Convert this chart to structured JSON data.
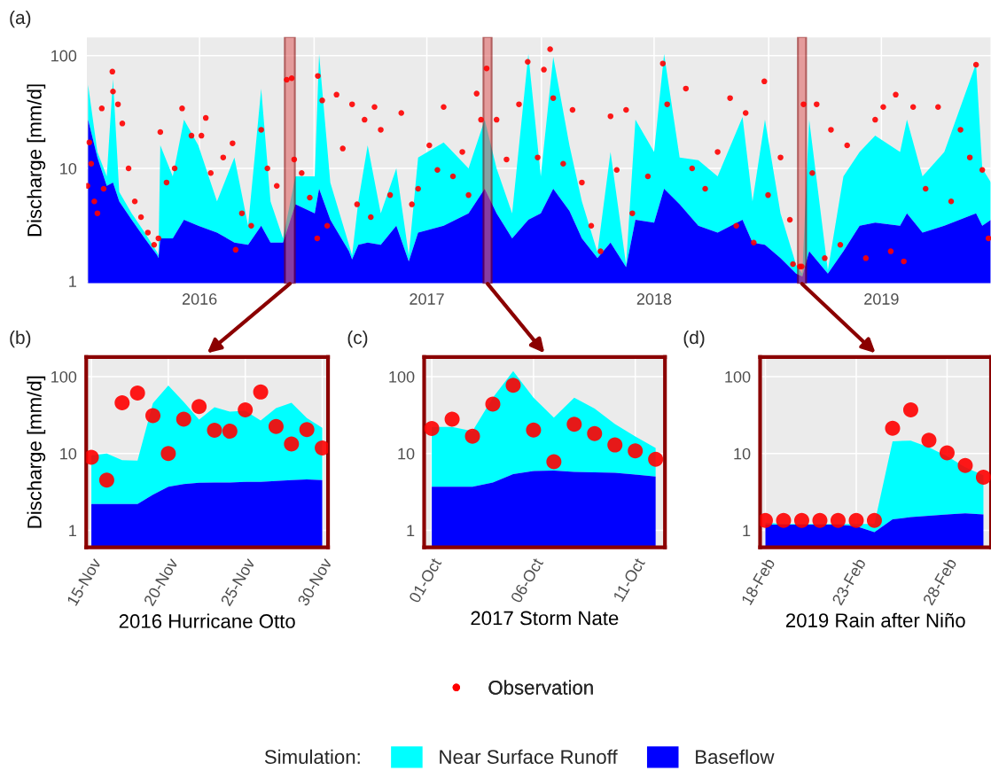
{
  "chart_data": [
    {
      "type": "area",
      "title": "(a)",
      "ylabel": "Discharge [mm/d]",
      "log": "y",
      "grid": true,
      "legend": "bottom",
      "legend_title": "Simulation:",
      "ylim": [
        0.95,
        146
      ],
      "yticks": [
        1,
        10,
        100
      ],
      "xlim": [
        "2016-01-01",
        "2019-12-24"
      ],
      "xticks": [
        {
          "value": "2016-01-01",
          "label": null
        },
        {
          "value": "2016-07-01",
          "label": "2016"
        },
        {
          "value": "2017-01-01",
          "label": null
        },
        {
          "value": "2017-07-01",
          "label": "2017"
        },
        {
          "value": "2018-01-01",
          "label": null
        },
        {
          "value": "2018-07-01",
          "label": "2018"
        },
        {
          "value": "2019-01-01",
          "label": null
        },
        {
          "value": "2019-07-01",
          "label": "2019"
        }
      ],
      "bands": [
        {
          "axis": "x",
          "from": "2016-11-15",
          "to": "2016-12-01",
          "color": "#e06666"
        },
        {
          "axis": "x",
          "from": "2017-09-30",
          "to": "2017-10-13",
          "color": "#e06666"
        },
        {
          "axis": "x",
          "from": "2019-02-17",
          "to": "2019-03-02",
          "color": "#e06666"
        }
      ],
      "x": [
        "2016-01-04",
        "2016-01-19",
        "2016-02-03",
        "2016-02-13",
        "2016-02-23",
        "2016-03-14",
        "2016-04-04",
        "2016-04-24",
        "2016-04-26",
        "2016-04-29",
        "2016-05-19",
        "2016-06-06",
        "2016-06-29",
        "2016-07-29",
        "2016-08-26",
        "2016-09-17",
        "2016-10-08",
        "2016-10-23",
        "2016-11-12",
        "2016-12-02",
        "2017-01-02",
        "2017-01-09",
        "2017-01-27",
        "2017-02-26",
        "2017-03-03",
        "2017-03-13",
        "2017-03-28",
        "2017-04-18",
        "2017-05-13",
        "2017-06-02",
        "2017-06-17",
        "2017-07-28",
        "2017-09-06",
        "2017-10-02",
        "2017-10-21",
        "2017-11-15",
        "2017-12-11",
        "2017-12-31",
        "2018-01-20",
        "2018-02-15",
        "2018-03-07",
        "2018-04-01",
        "2018-04-22",
        "2018-05-17",
        "2018-06-01",
        "2018-07-01",
        "2018-07-17",
        "2018-08-11",
        "2018-09-10",
        "2018-10-11",
        "2018-11-20",
        "2018-12-06",
        "2018-12-26",
        "2019-01-20",
        "2019-02-14",
        "2019-02-24",
        "2019-03-07",
        "2019-04-06",
        "2019-05-01",
        "2019-05-27",
        "2019-06-21",
        "2019-07-31",
        "2019-08-11",
        "2019-09-05",
        "2019-10-10",
        "2019-11-30",
        "2019-12-10",
        "2019-12-24"
      ],
      "series": [
        {
          "name": "Near Surface Runoff",
          "color": "#00ffff",
          "values": [
            55,
            14,
            8.5,
            62,
            6.2,
            4,
            2.7,
            1.8,
            1.7,
            16,
            8.5,
            27,
            16,
            5.1,
            12.5,
            3.1,
            51,
            5.1,
            2.4,
            8.5,
            8.5,
            103,
            7.5,
            2.1,
            1.7,
            5.1,
            16,
            4,
            10,
            1.7,
            12.5,
            17,
            10,
            27,
            10,
            4,
            103,
            8.5,
            97,
            16,
            5.1,
            1.8,
            14,
            1.4,
            27,
            14,
            103,
            12.5,
            11.8,
            8.5,
            28.6,
            5.1,
            27,
            4,
            1.4,
            1.17,
            27,
            1.25,
            8.5,
            14,
            19.5,
            14,
            27,
            8.5,
            14,
            85,
            10,
            7.5
          ]
        },
        {
          "name": "Baseflow",
          "color": "#0000ff",
          "values": [
            27,
            12.5,
            7,
            7.5,
            5.1,
            3.5,
            2.4,
            1.7,
            1.6,
            2.4,
            2.4,
            3.5,
            3.1,
            2.7,
            2.2,
            2.1,
            3.1,
            2.2,
            2.2,
            4.8,
            4.0,
            6.6,
            3.5,
            1.84,
            1.56,
            2.1,
            2.2,
            2.1,
            3.1,
            1.5,
            2.7,
            3.1,
            4.0,
            6.6,
            4.0,
            2.4,
            3.5,
            4,
            6.6,
            4.2,
            2.4,
            1.6,
            2.2,
            1.33,
            3.5,
            3.3,
            6.6,
            4.8,
            3.1,
            2.7,
            3.5,
            2.2,
            2.1,
            1.6,
            1.17,
            1.1,
            1.84,
            1.17,
            1.84,
            3.1,
            3.3,
            3.1,
            4.0,
            2.7,
            3.1,
            4.0,
            3.1,
            3.5
          ]
        },
        {
          "name": "Observation",
          "type": "scatter",
          "marker": "circle",
          "color": "#ff0000",
          "x": [
            "2016-01-03",
            "2016-01-06",
            "2016-01-09",
            "2016-01-14",
            "2016-01-19",
            "2016-01-26",
            "2016-01-29",
            "2016-02-12",
            "2016-02-13",
            "2016-02-21",
            "2016-02-28",
            "2016-03-09",
            "2016-03-19",
            "2016-03-29",
            "2016-04-09",
            "2016-04-19",
            "2016-04-26",
            "2016-04-29",
            "2016-05-09",
            "2016-05-22",
            "2016-06-03",
            "2016-06-18",
            "2016-07-04",
            "2016-07-11",
            "2016-07-19",
            "2016-08-08",
            "2016-08-23",
            "2016-08-28",
            "2016-09-07",
            "2016-09-22",
            "2016-10-08",
            "2016-10-18",
            "2016-11-02",
            "2016-11-18",
            "2016-11-26",
            "2016-11-30",
            "2016-12-12",
            "2016-12-25",
            "2017-01-06",
            "2017-01-07",
            "2017-01-14",
            "2017-01-22",
            "2017-02-06",
            "2017-02-16",
            "2017-03-03",
            "2017-03-11",
            "2017-03-23",
            "2017-04-02",
            "2017-04-08",
            "2017-04-18",
            "2017-05-03",
            "2017-05-21",
            "2017-06-07",
            "2017-06-17",
            "2017-07-05",
            "2017-07-18",
            "2017-07-28",
            "2017-08-12",
            "2017-08-27",
            "2017-09-06",
            "2017-09-19",
            "2017-09-26",
            "2017-10-05",
            "2017-10-21",
            "2017-11-06",
            "2017-11-26",
            "2017-12-10",
            "2017-12-26",
            "2018-01-05",
            "2018-01-15",
            "2018-01-20",
            "2018-02-05",
            "2018-02-20",
            "2018-03-07",
            "2018-03-22",
            "2018-04-06",
            "2018-04-22",
            "2018-05-02",
            "2018-05-17",
            "2018-05-27",
            "2018-06-21",
            "2018-07-15",
            "2018-07-22",
            "2018-08-21",
            "2018-08-31",
            "2018-09-21",
            "2018-10-11",
            "2018-10-31",
            "2018-11-10",
            "2018-11-25",
            "2018-12-08",
            "2018-12-25",
            "2018-12-31",
            "2019-01-20",
            "2019-02-04",
            "2019-02-09",
            "2019-02-20",
            "2019-02-23",
            "2019-02-26",
            "2019-03-12",
            "2019-03-19",
            "2019-04-01",
            "2019-04-11",
            "2019-04-26",
            "2019-05-07",
            "2019-06-06",
            "2019-06-21",
            "2019-07-04",
            "2019-07-16",
            "2019-07-24",
            "2019-08-06",
            "2019-08-21",
            "2019-09-10",
            "2019-09-30",
            "2019-10-21",
            "2019-11-05",
            "2019-11-20",
            "2019-11-30",
            "2019-12-10",
            "2019-12-20"
          ],
          "values": [
            7.0,
            17,
            11,
            5.1,
            4.0,
            34,
            6.6,
            72,
            48,
            37,
            25,
            10,
            5.1,
            3.7,
            2.7,
            2.1,
            2.4,
            21,
            7.5,
            10,
            34,
            19.5,
            19.5,
            28,
            9.1,
            12.5,
            16.7,
            1.9,
            4.0,
            3.1,
            22,
            10,
            7.0,
            61,
            63,
            12,
            9.1,
            5.5,
            2.4,
            66,
            40,
            3.1,
            45,
            15,
            37,
            4.8,
            27,
            3.7,
            35,
            22,
            5.8,
            31,
            4.8,
            6.6,
            16,
            9.7,
            35,
            8.5,
            14,
            5.8,
            46,
            27,
            77,
            27,
            12,
            37,
            88,
            12.5,
            75,
            114,
            42,
            11,
            33,
            7.5,
            3.1,
            1.84,
            29,
            9.7,
            33,
            4.0,
            8.5,
            85,
            37,
            51,
            10,
            6.6,
            14,
            42,
            3.1,
            31,
            2.2,
            59,
            5.8,
            12.5,
            3.5,
            1.42,
            1.35,
            1.35,
            37,
            9.1,
            37,
            1.6,
            22,
            2.1,
            16,
            1.6,
            27,
            35,
            1.84,
            45,
            1.5,
            35,
            6.6,
            35,
            5.1,
            22,
            12.5,
            83,
            9.7,
            2.4
          ]
        }
      ]
    },
    {
      "type": "area",
      "title": "(b)",
      "ylabel": "Discharge [mm/d]",
      "xlabel": "2016 Hurricane Otto",
      "log": "y",
      "grid": true,
      "ylim": [
        0.6,
        180
      ],
      "yticks": [
        1,
        10,
        100
      ],
      "xlim": [
        "2016-11-14T16:00",
        "2016-11-30T09:00"
      ],
      "xticks": [
        {
          "value": "2016-11-15",
          "label": "15-Nov"
        },
        {
          "value": "2016-11-20",
          "label": "20-Nov"
        },
        {
          "value": "2016-11-25",
          "label": "25-Nov"
        },
        {
          "value": "2016-11-30",
          "label": "30-Nov"
        }
      ],
      "x": [
        "2016-11-15",
        "2016-11-16",
        "2016-11-17",
        "2016-11-18",
        "2016-11-19",
        "2016-11-20",
        "2016-11-21",
        "2016-11-22",
        "2016-11-23",
        "2016-11-24",
        "2016-11-25",
        "2016-11-26",
        "2016-11-27",
        "2016-11-28",
        "2016-11-29",
        "2016-11-30"
      ],
      "series": [
        {
          "color": "#00ffff",
          "values": [
            9.4,
            10,
            8.2,
            8.1,
            45,
            76.6,
            47,
            27.6,
            40,
            35,
            36,
            26.8,
            39,
            45.7,
            28.8,
            21.5
          ]
        },
        {
          "color": "#0000ff",
          "values": [
            2.2,
            2.2,
            2.2,
            2.2,
            2.9,
            3.7,
            4.0,
            4.15,
            4.2,
            4.2,
            4.26,
            4.26,
            4.4,
            4.5,
            4.6,
            4.5
          ]
        },
        {
          "type": "scatter",
          "marker": "circle",
          "color": "#ff0000",
          "values": [
            8.9,
            4.5,
            45.7,
            61,
            31,
            10,
            28,
            40.7,
            20,
            19.5,
            37,
            63,
            22.5,
            13.3,
            20.5,
            11.8
          ]
        }
      ]
    },
    {
      "type": "area",
      "title": "(c)",
      "xlabel": "2017 Storm Nate",
      "log": "y",
      "grid": true,
      "ylim": [
        0.6,
        180
      ],
      "yticks": [
        1,
        10,
        100
      ],
      "xlim": [
        "2017-09-30T15:00",
        "2017-10-12T11:00"
      ],
      "xticks": [
        {
          "value": "2017-10-01",
          "label": "01-Oct"
        },
        {
          "value": "2017-10-06",
          "label": "06-Oct"
        },
        {
          "value": "2017-10-11",
          "label": "11-Oct"
        }
      ],
      "x": [
        "2017-10-01",
        "2017-10-02",
        "2017-10-03",
        "2017-10-04",
        "2017-10-05",
        "2017-10-06",
        "2017-10-07",
        "2017-10-08",
        "2017-10-09",
        "2017-10-10",
        "2017-10-11",
        "2017-10-12"
      ],
      "series": [
        {
          "color": "#00ffff",
          "values": [
            22.2,
            22.2,
            19.5,
            53,
            118,
            53,
            29.3,
            53,
            38.4,
            24.2,
            16.6,
            11.8
          ]
        },
        {
          "color": "#0000ff",
          "values": [
            3.7,
            3.7,
            3.7,
            4.2,
            5.4,
            5.9,
            6.0,
            5.75,
            5.7,
            5.6,
            5.3,
            5.0
          ]
        },
        {
          "type": "scatter",
          "marker": "circle",
          "color": "#ff0000",
          "values": [
            21.2,
            28,
            16.8,
            43.8,
            77,
            20.2,
            7.8,
            24,
            18.2,
            12.9,
            10.8,
            8.4
          ]
        }
      ]
    },
    {
      "type": "area",
      "title": "(d)",
      "xlabel": "2019 Rain after Niño",
      "log": "y",
      "grid": true,
      "ylim": [
        0.6,
        180
      ],
      "yticks": [
        1,
        10,
        100
      ],
      "xlim": [
        "2019-02-17T17:00",
        "2019-03-02T10:00"
      ],
      "xticks": [
        {
          "value": "2019-02-18",
          "label": "18-Feb"
        },
        {
          "value": "2019-02-23",
          "label": "23-Feb"
        },
        {
          "value": "2019-02-28",
          "label": "28-Feb"
        }
      ],
      "x": [
        "2019-02-18",
        "2019-02-19",
        "2019-02-20",
        "2019-02-21",
        "2019-02-22",
        "2019-02-23",
        "2019-02-24",
        "2019-02-25",
        "2019-02-26",
        "2019-02-27",
        "2019-02-28",
        "2019-03-01",
        "2019-03-02"
      ],
      "series": [
        {
          "color": "#00ffff",
          "values": [
            1.26,
            1.21,
            1.21,
            1.21,
            1.21,
            1.21,
            1.21,
            14.4,
            14.7,
            12,
            9.2,
            6.6,
            5.2
          ]
        },
        {
          "color": "#0000ff",
          "values": [
            1.19,
            1.19,
            1.19,
            1.19,
            1.19,
            1.13,
            0.95,
            1.39,
            1.49,
            1.55,
            1.61,
            1.67,
            1.61
          ]
        },
        {
          "type": "scatter",
          "marker": "circle",
          "color": "#ff0000",
          "values": [
            1.35,
            1.35,
            1.35,
            1.35,
            1.35,
            1.35,
            1.35,
            21.3,
            36.9,
            14.9,
            10.2,
            7.0,
            4.9
          ]
        }
      ]
    }
  ]
}
